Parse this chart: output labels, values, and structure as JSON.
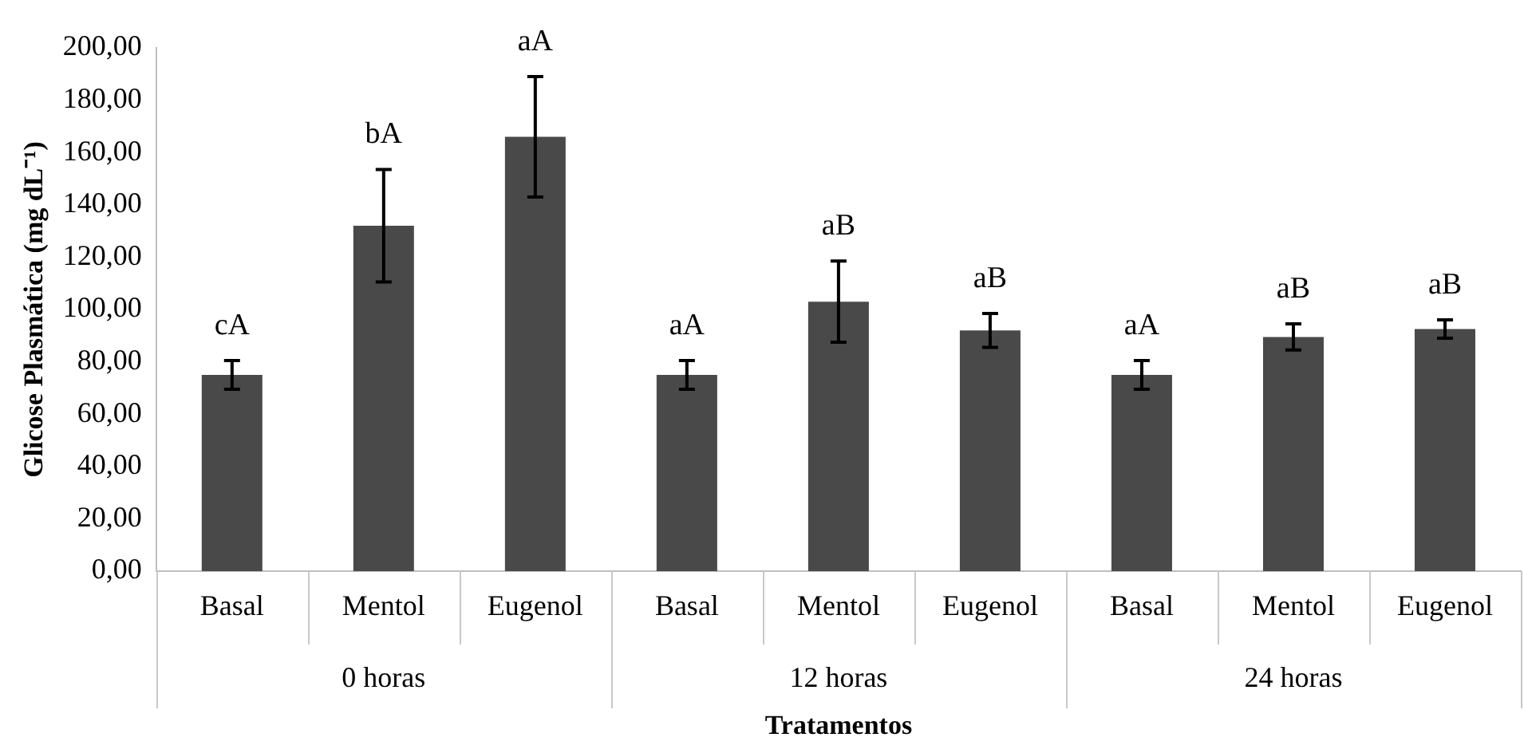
{
  "chart_data": {
    "type": "bar",
    "xlabel": "Tratamentos",
    "ylabel": "Glicose Plasmática (mg dL⁻¹)",
    "categories": [
      "Basal",
      "Mentol",
      "Eugenol",
      "Basal",
      "Mentol",
      "Eugenol",
      "Basal",
      "Mentol",
      "Eugenol"
    ],
    "values": [
      75,
      132,
      166,
      75,
      103,
      92,
      75,
      89.5,
      92.5
    ],
    "errors": [
      5.5,
      21.5,
      23,
      5.5,
      15.5,
      6.5,
      5.5,
      5,
      3.5
    ],
    "value_labels": [
      "cA",
      "bA",
      "aA",
      "aA",
      "aB",
      "aB",
      "aA",
      "aB",
      "aB"
    ],
    "color": "#494949",
    "annotations": [
      "0 horas",
      "12 horas",
      "24 horas"
    ],
    "ylim": [
      0,
      200
    ],
    "yticks": [
      {
        "value": 0,
        "label": "0,00"
      },
      {
        "value": 20,
        "label": "20,00"
      },
      {
        "value": 40,
        "label": "40,00"
      },
      {
        "value": 60,
        "label": "60,00"
      },
      {
        "value": 80,
        "label": "80,00"
      },
      {
        "value": 100,
        "label": "100,00"
      },
      {
        "value": 120,
        "label": "120,00"
      },
      {
        "value": 140,
        "label": "140,00"
      },
      {
        "value": 160,
        "label": "160,00"
      },
      {
        "value": 180,
        "label": "180,00"
      },
      {
        "value": 200,
        "label": "200,00"
      }
    ],
    "grid": false,
    "legend": false
  }
}
